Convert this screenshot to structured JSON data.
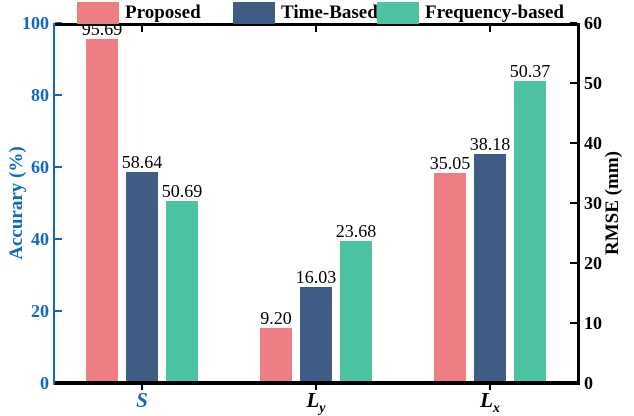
{
  "figure": {
    "background": "#ffffff"
  },
  "chart_data": {
    "type": "bar",
    "title": "",
    "grid": false,
    "legend_position": "top-horizontal",
    "categories": [
      {
        "base": "S",
        "hat": false,
        "sub": "",
        "color": "#1068c5"
      },
      {
        "base": "L",
        "hat": true,
        "sub": "y",
        "color": "#000000"
      },
      {
        "base": "L",
        "hat": true,
        "sub": "x",
        "color": "#000000"
      }
    ],
    "group_axis": [
      "left",
      "right",
      "right"
    ],
    "series": [
      {
        "name": "Proposed",
        "color": "#ef7e84",
        "values": [
          95.69,
          9.2,
          35.05
        ],
        "value_labels": [
          "95.69",
          "9.20",
          "35.05"
        ]
      },
      {
        "name": "Time-Based",
        "color": "#3e5c84",
        "values": [
          58.64,
          16.03,
          38.18
        ],
        "value_labels": [
          "58.64",
          "16.03",
          "38.18"
        ]
      },
      {
        "name": "Frequency-based",
        "color": "#4cc3a3",
        "values": [
          50.69,
          23.68,
          50.37
        ],
        "value_labels": [
          "50.69",
          "23.68",
          "50.37"
        ]
      }
    ],
    "axes": {
      "left": {
        "label": "Accurary (%)",
        "color": "#1068c5",
        "ticks": [
          0,
          20,
          40,
          60,
          80,
          100
        ],
        "lim": [
          0,
          100
        ]
      },
      "right": {
        "label": "RMSE (mm)",
        "color": "#000000",
        "ticks": [
          0,
          10,
          20,
          30,
          40,
          50,
          60
        ],
        "lim": [
          0,
          60
        ]
      }
    }
  }
}
